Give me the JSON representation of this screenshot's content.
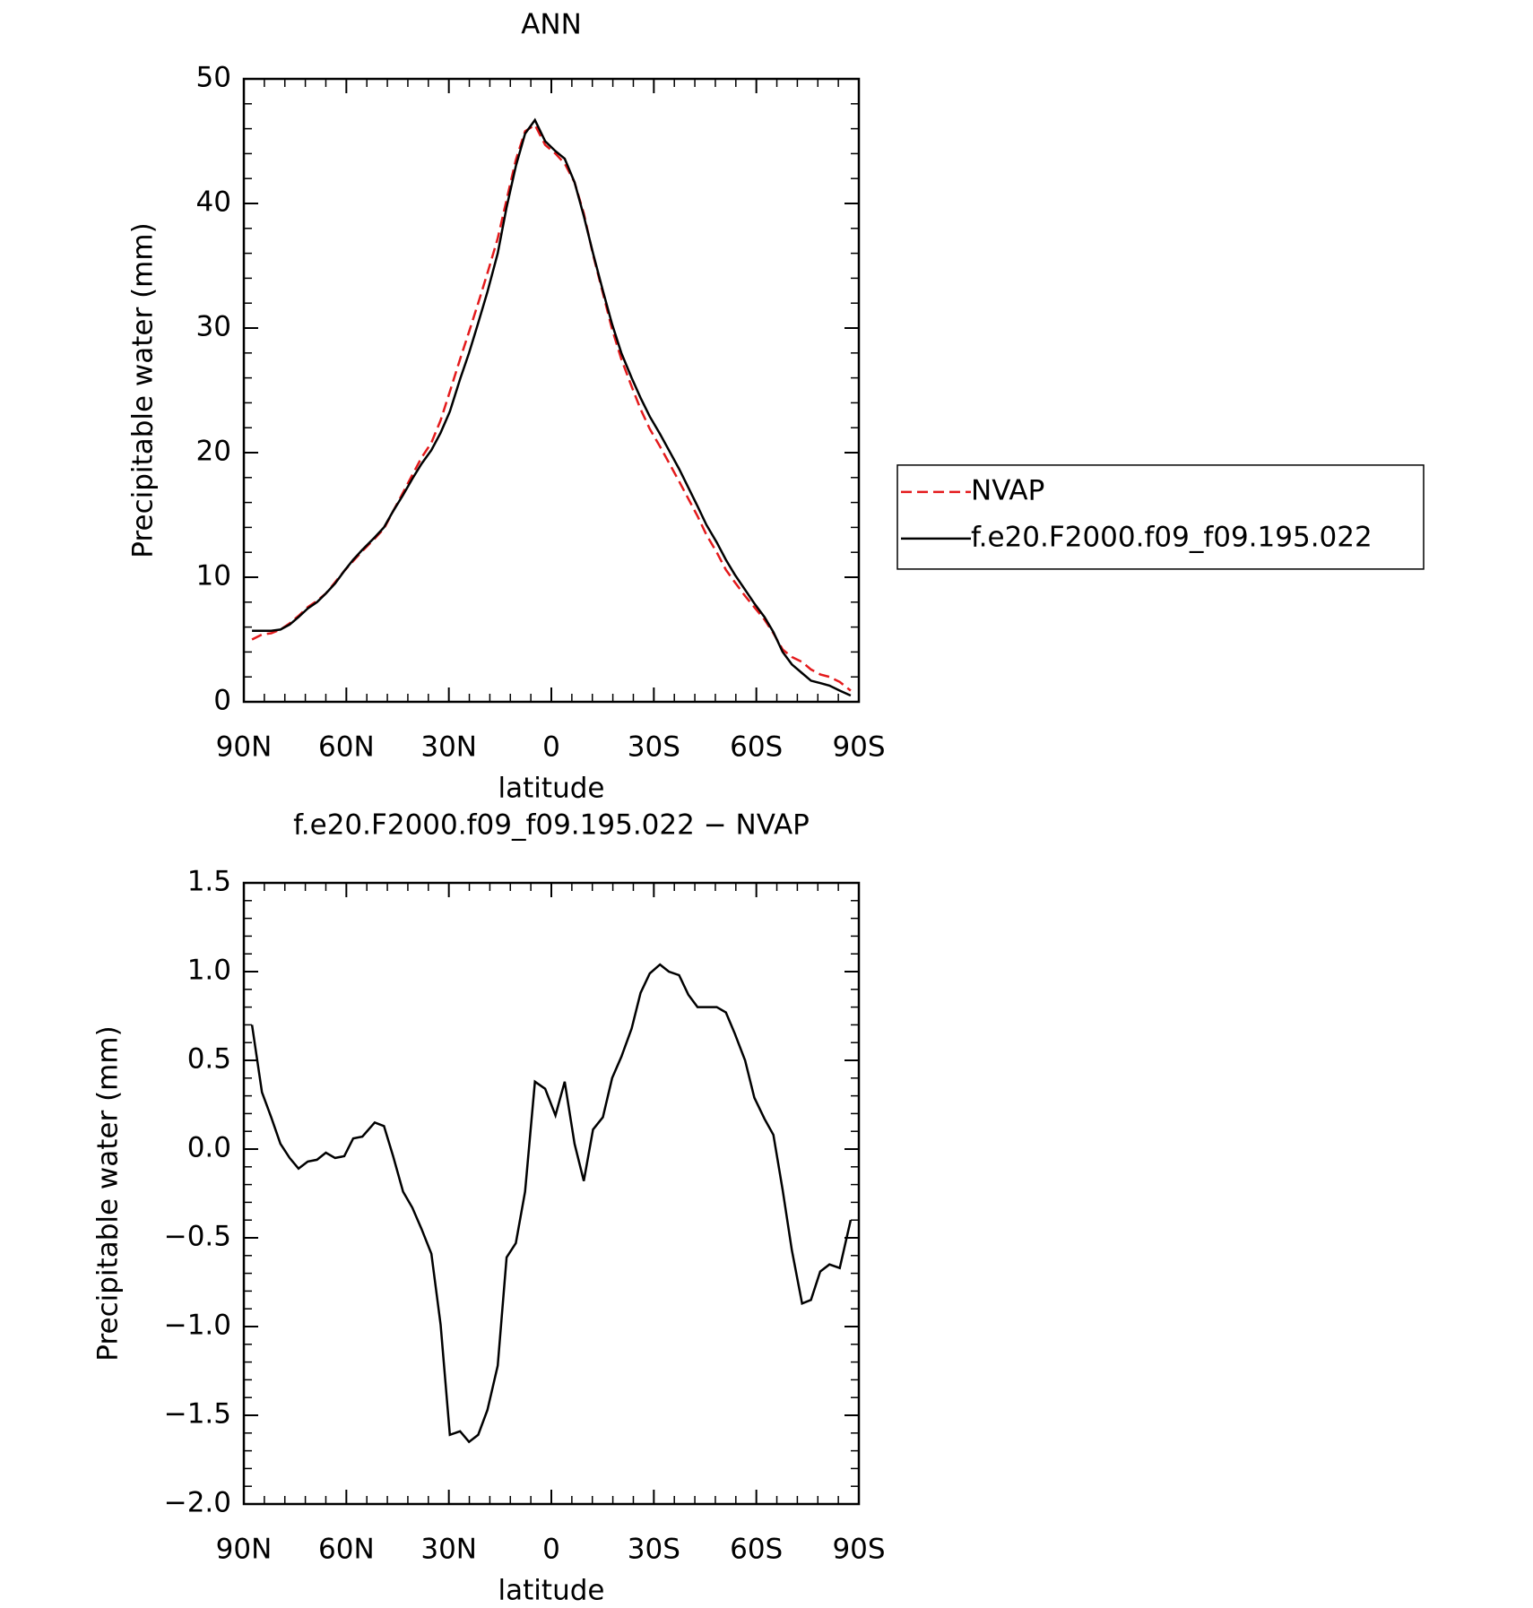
{
  "chart_data": [
    {
      "type": "line",
      "title": "ANN",
      "x_label": "latitude",
      "y_label": "Precipitable water (mm)",
      "xlim": [
        90,
        -90
      ],
      "xticks": [
        {
          "value": 90,
          "label": "90N"
        },
        {
          "value": 60,
          "label": "60N"
        },
        {
          "value": 30,
          "label": "30N"
        },
        0,
        {
          "value": -30,
          "label": "30S"
        },
        {
          "value": -60,
          "label": "60S"
        },
        {
          "value": -90,
          "label": "90S"
        }
      ],
      "ylim": [
        0,
        50
      ],
      "yticks": [
        0,
        10,
        20,
        30,
        40,
        50
      ],
      "grid": false,
      "legend": "right",
      "x": [
        87.6,
        84.7,
        82.0,
        79.3,
        76.6,
        74.0,
        71.3,
        68.6,
        66.0,
        63.3,
        60.6,
        58.0,
        55.3,
        51.7,
        49.0,
        46.3,
        43.4,
        40.7,
        38.0,
        35.1,
        32.4,
        29.7,
        26.7,
        24.1,
        21.4,
        18.7,
        15.7,
        13.1,
        10.4,
        7.7,
        4.8,
        1.8,
        -1.2,
        -3.9,
        -6.8,
        -9.5,
        -12.2,
        -15.1,
        -17.8,
        -20.5,
        -23.5,
        -26.1,
        -28.8,
        -31.8,
        -34.4,
        -37.4,
        -40.1,
        -42.8,
        -45.4,
        -48.4,
        -51.1,
        -53.7,
        -56.7,
        -59.4,
        -62.4,
        -65.0,
        -67.7,
        -70.4,
        -73.4,
        -76.0,
        -78.7,
        -81.4,
        -84.4,
        -87.6
      ],
      "series": [
        {
          "name": "NVAP",
          "color": "#e41a1c",
          "line_style": "dashed",
          "values": [
            5.0,
            5.4,
            5.5,
            5.8,
            6.3,
            6.9,
            7.6,
            8.1,
            8.7,
            9.6,
            10.5,
            11.3,
            12.1,
            13.1,
            13.9,
            15.3,
            16.8,
            18.2,
            19.6,
            20.8,
            22.6,
            24.9,
            27.5,
            29.7,
            32.0,
            34.4,
            37.2,
            40.3,
            43.5,
            45.8,
            46.3,
            44.7,
            44.0,
            43.2,
            41.7,
            39.2,
            35.9,
            32.8,
            29.9,
            27.5,
            25.3,
            23.5,
            21.9,
            20.5,
            19.2,
            17.7,
            16.3,
            14.9,
            13.4,
            12.0,
            10.6,
            9.6,
            8.5,
            7.6,
            6.6,
            5.5,
            4.2,
            3.6,
            3.2,
            2.6,
            2.2,
            2.0,
            1.6,
            0.9
          ]
        },
        {
          "name": "f.e20.F2000.f09_f09.195.022",
          "color": "#000000",
          "line_style": "solid",
          "values": [
            5.7,
            5.7,
            5.7,
            5.8,
            6.2,
            6.8,
            7.5,
            8.0,
            8.7,
            9.5,
            10.5,
            11.4,
            12.2,
            13.2,
            14.0,
            15.3,
            16.6,
            17.9,
            19.1,
            20.2,
            21.6,
            23.3,
            25.9,
            28.0,
            30.4,
            32.9,
            36.0,
            39.7,
            43.0,
            45.6,
            46.7,
            45.0,
            44.2,
            43.6,
            41.7,
            39.0,
            36.0,
            33.0,
            30.3,
            28.0,
            26.0,
            24.4,
            22.9,
            21.5,
            20.2,
            18.7,
            17.2,
            15.7,
            14.2,
            12.8,
            11.4,
            10.2,
            9.0,
            7.9,
            6.8,
            5.6,
            4.0,
            3.0,
            2.3,
            1.7,
            1.5,
            1.3,
            0.9,
            0.5
          ]
        }
      ]
    },
    {
      "type": "line",
      "title": "f.e20.F2000.f09_f09.195.022 − NVAP",
      "x_label": "latitude",
      "y_label": "Precipitable water (mm)",
      "xlim": [
        90,
        -90
      ],
      "xticks": [
        {
          "value": 90,
          "label": "90N"
        },
        {
          "value": 60,
          "label": "60N"
        },
        {
          "value": 30,
          "label": "30N"
        },
        0,
        {
          "value": -30,
          "label": "30S"
        },
        {
          "value": -60,
          "label": "60S"
        },
        {
          "value": -90,
          "label": "90S"
        }
      ],
      "ylim": [
        -2,
        1.5
      ],
      "yticks": [
        {
          "value": -2,
          "label": "−2.0"
        },
        {
          "value": -1.5,
          "label": "−1.5"
        },
        {
          "value": -1,
          "label": "−1.0"
        },
        {
          "value": -0.5,
          "label": "−0.5"
        },
        {
          "value": 0,
          "label": "0.0"
        },
        0.5,
        {
          "value": 1,
          "label": "1.0"
        },
        1.5
      ],
      "grid": false,
      "x": [
        87.6,
        84.7,
        82.0,
        79.3,
        76.6,
        74.0,
        71.3,
        68.6,
        66.0,
        63.3,
        60.6,
        58.0,
        55.3,
        51.7,
        49.0,
        46.3,
        43.4,
        40.7,
        38.0,
        35.1,
        32.4,
        29.7,
        26.7,
        24.1,
        21.4,
        18.7,
        15.7,
        13.1,
        10.4,
        7.7,
        4.8,
        1.8,
        -1.2,
        -3.9,
        -6.8,
        -9.5,
        -12.2,
        -15.1,
        -17.8,
        -20.5,
        -23.5,
        -26.1,
        -28.8,
        -31.8,
        -34.4,
        -37.4,
        -40.1,
        -42.8,
        -45.4,
        -48.4,
        -51.1,
        -53.7,
        -56.7,
        -59.4,
        -62.4,
        -65.0,
        -67.7,
        -70.4,
        -73.4,
        -76.0,
        -78.7,
        -81.4,
        -84.4,
        -87.6
      ],
      "series": [
        {
          "color": "#000000",
          "line_style": "solid",
          "values": [
            0.7,
            0.32,
            0.18,
            0.03,
            -0.05,
            -0.11,
            -0.07,
            -0.06,
            -0.02,
            -0.05,
            -0.04,
            0.06,
            0.07,
            0.15,
            0.13,
            -0.04,
            -0.24,
            -0.33,
            -0.45,
            -0.59,
            -0.99,
            -1.61,
            -1.59,
            -1.65,
            -1.61,
            -1.47,
            -1.22,
            -0.61,
            -0.53,
            -0.24,
            0.38,
            0.34,
            0.19,
            0.38,
            0.03,
            -0.18,
            0.11,
            0.18,
            0.4,
            0.52,
            0.68,
            0.88,
            0.99,
            1.04,
            1.0,
            0.98,
            0.87,
            0.8,
            0.8,
            0.8,
            0.77,
            0.65,
            0.5,
            0.29,
            0.17,
            0.08,
            -0.23,
            -0.57,
            -0.87,
            -0.85,
            -0.69,
            -0.65,
            -0.67,
            -0.4
          ]
        }
      ]
    }
  ]
}
